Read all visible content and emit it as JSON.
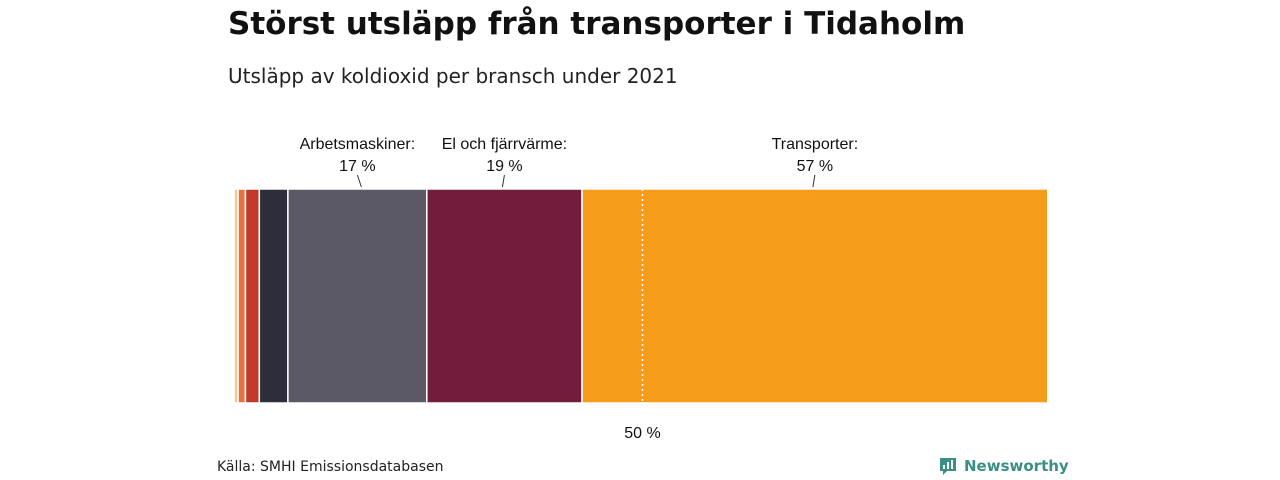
{
  "title": "Störst utsläpp från transporter i Tidaholm",
  "subtitle": "Utsläpp av koldioxid per bransch under 2021",
  "source": "Källa: SMHI Emissionsdatabasen",
  "brand": {
    "name": "Newsworthy",
    "color": "#3a8f86",
    "icon": "bar-chart-logo-icon"
  },
  "chart_data": {
    "type": "bar",
    "orientation": "stacked-horizontal-100",
    "xlim": [
      0,
      100
    ],
    "segments": [
      {
        "value": 0.5,
        "color": "#f6c89a"
      },
      {
        "value": 0.9,
        "color": "#e8703a"
      },
      {
        "value": 1.7,
        "color": "#c0392b"
      },
      {
        "value": 3.5,
        "color": "#2e2d3b"
      },
      {
        "value": 17,
        "color": "#5a5965",
        "label": "Arbetsmaskiner:",
        "value_label": "17 %"
      },
      {
        "value": 19,
        "color": "#721d3b",
        "label": "El och fjärrvärme:",
        "value_label": "19 %"
      },
      {
        "value": 57,
        "color": "#f59c1a",
        "label": "Transporter:",
        "value_label": "57 %"
      }
    ],
    "reference_line": {
      "value": 50,
      "label": "50 %"
    }
  }
}
